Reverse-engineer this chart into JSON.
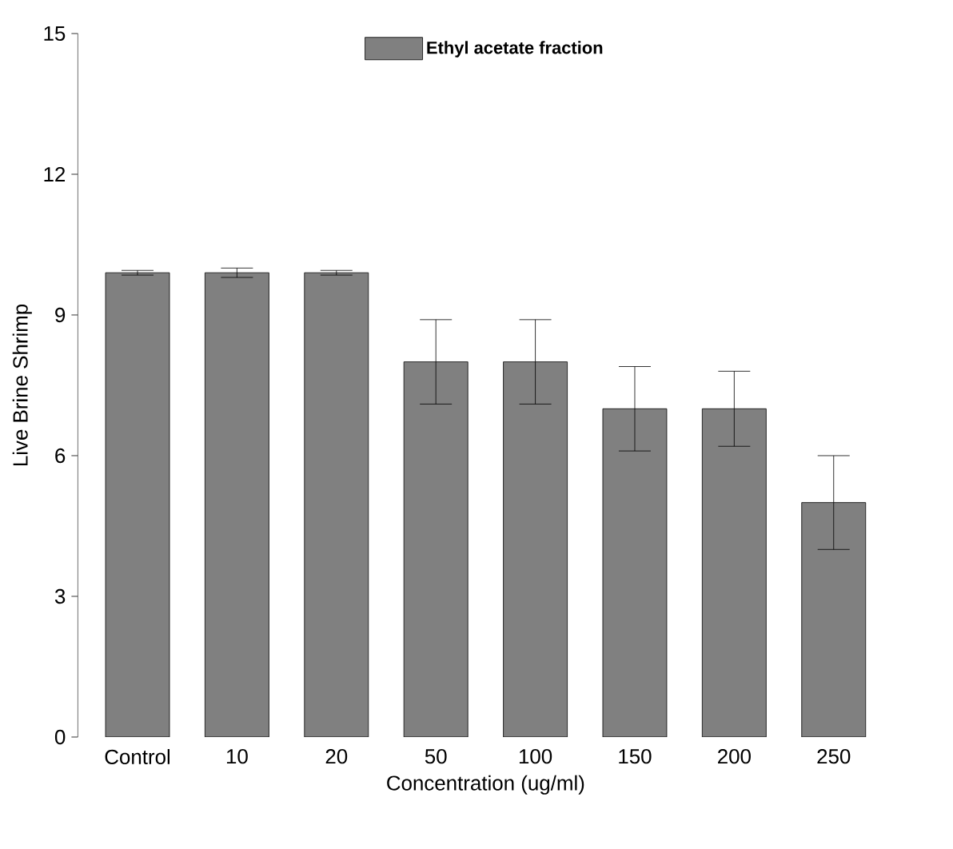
{
  "chart_data": {
    "type": "bar",
    "xlabel": "Concentration (ug/ml)",
    "ylabel": "Live Brine Shrimp",
    "categories": [
      "Control",
      "10",
      "20",
      "50",
      "100",
      "150",
      "200",
      "250"
    ],
    "series": [
      {
        "name": "Ethyl acetate fraction",
        "color": "#808080",
        "values": [
          9.9,
          9.9,
          9.9,
          8,
          8,
          7,
          7,
          5
        ],
        "errors": [
          0.05,
          0.1,
          0.05,
          0.9,
          0.9,
          0.9,
          0.8,
          1.0
        ]
      }
    ],
    "ylim": [
      0,
      15
    ],
    "yticks": [
      0,
      3,
      6,
      9,
      12,
      15
    ],
    "grid": false,
    "legend": "top"
  }
}
